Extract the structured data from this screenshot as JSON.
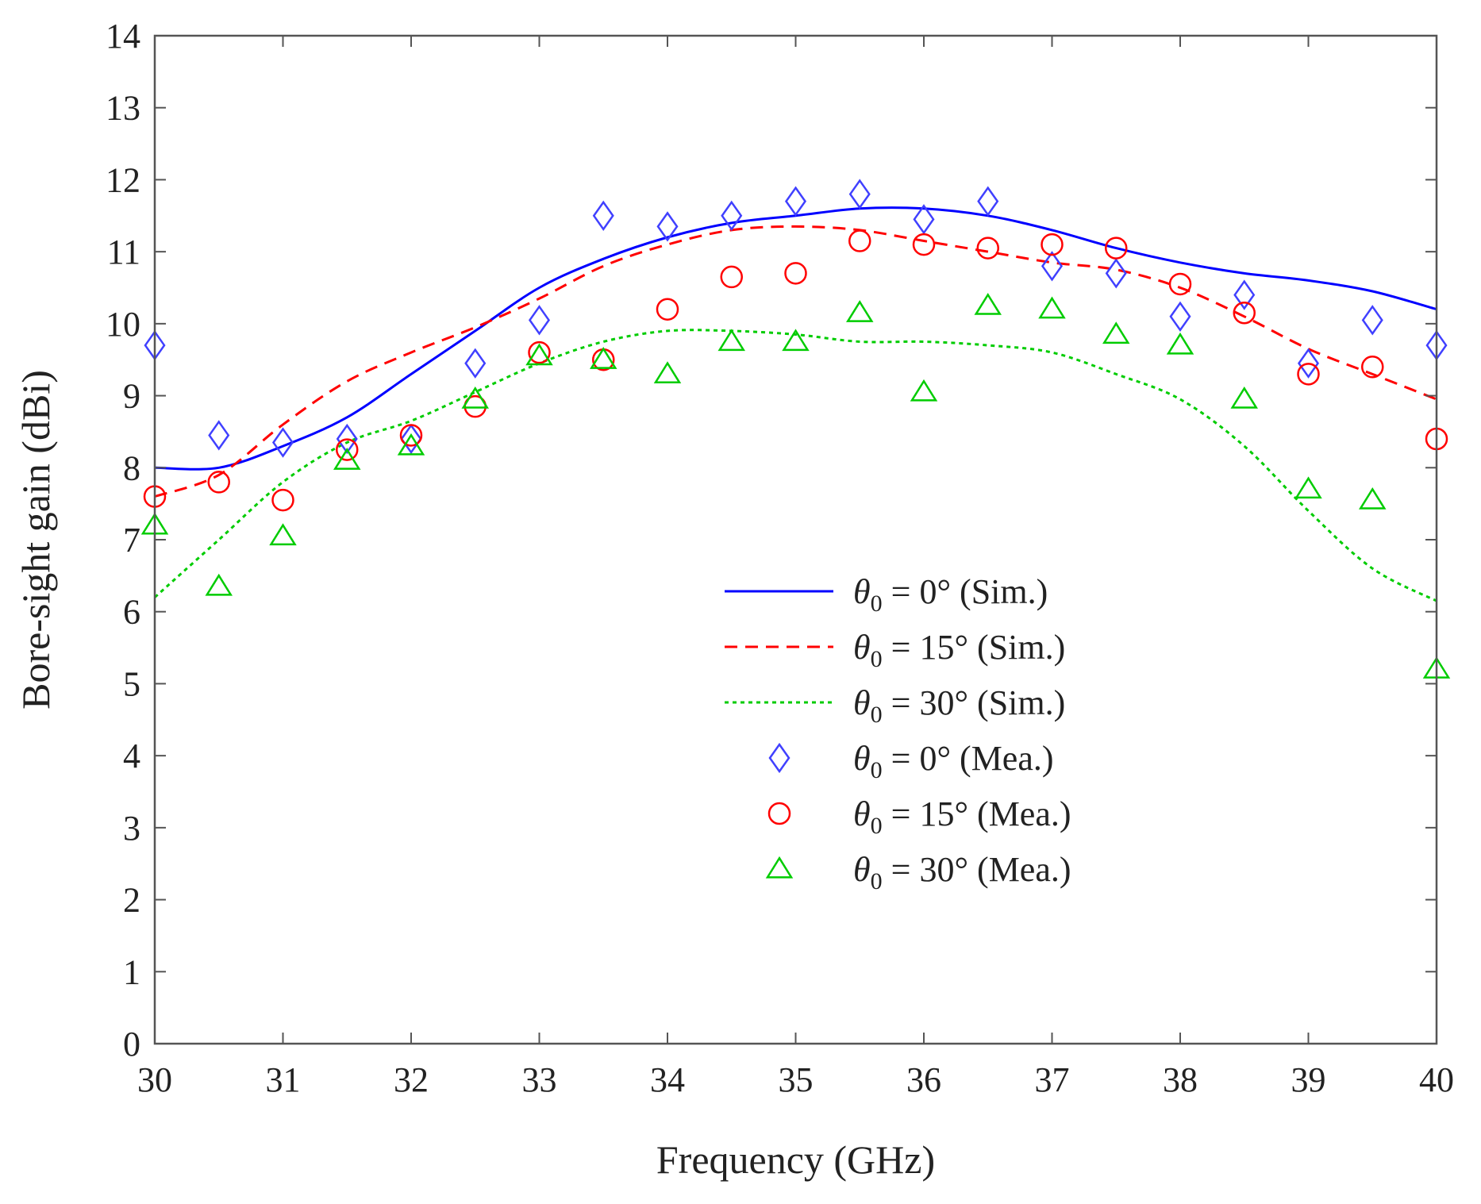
{
  "chart_data": {
    "type": "line",
    "title": "",
    "xlabel": "Frequency (GHz)",
    "ylabel": "Bore-sight gain (dBi)",
    "xlim": [
      30,
      40
    ],
    "ylim": [
      0,
      14
    ],
    "xticks": [
      30,
      31,
      32,
      33,
      34,
      35,
      36,
      37,
      38,
      39,
      40
    ],
    "yticks": [
      0,
      1,
      2,
      3,
      4,
      5,
      6,
      7,
      8,
      9,
      10,
      11,
      12,
      13,
      14
    ],
    "grid": false,
    "legend_position": "lower-right",
    "series": [
      {
        "name": "θ0 = 0° (Sim.)",
        "kind": "line",
        "style": "solid",
        "color": "#0000ff",
        "x": [
          30,
          30.5,
          31,
          31.5,
          32,
          32.5,
          33,
          33.5,
          34,
          34.5,
          35,
          35.5,
          36,
          36.5,
          37,
          37.5,
          38,
          38.5,
          39,
          39.5,
          40
        ],
        "y": [
          8.0,
          8.0,
          8.3,
          8.7,
          9.3,
          9.9,
          10.5,
          10.9,
          11.2,
          11.4,
          11.5,
          11.6,
          11.6,
          11.5,
          11.3,
          11.05,
          10.85,
          10.7,
          10.6,
          10.45,
          10.2
        ]
      },
      {
        "name": "θ0 = 15° (Sim.)",
        "kind": "line",
        "style": "dashed",
        "color": "#ff0000",
        "x": [
          30,
          30.5,
          31,
          31.5,
          32,
          32.5,
          33,
          33.5,
          34,
          34.5,
          35,
          35.5,
          36,
          36.5,
          37,
          37.5,
          38,
          38.5,
          39,
          39.5,
          40
        ],
        "y": [
          7.6,
          7.9,
          8.6,
          9.2,
          9.6,
          9.95,
          10.35,
          10.8,
          11.1,
          11.3,
          11.35,
          11.3,
          11.15,
          11.0,
          10.85,
          10.75,
          10.5,
          10.1,
          9.65,
          9.3,
          8.95
        ]
      },
      {
        "name": "θ0 = 30° (Sim.)",
        "kind": "line",
        "style": "dotted",
        "color": "#00cc00",
        "x": [
          30,
          30.5,
          31,
          31.5,
          32,
          32.5,
          33,
          33.5,
          34,
          34.5,
          35,
          35.5,
          36,
          36.5,
          37,
          37.5,
          38,
          38.5,
          39,
          39.5,
          40
        ],
        "y": [
          6.2,
          7.0,
          7.8,
          8.35,
          8.65,
          9.05,
          9.45,
          9.75,
          9.9,
          9.9,
          9.85,
          9.75,
          9.75,
          9.7,
          9.6,
          9.3,
          8.95,
          8.3,
          7.4,
          6.6,
          6.15
        ]
      },
      {
        "name": "θ0 = 0° (Mea.)",
        "kind": "marker",
        "marker": "diamond",
        "color": "#4040ff",
        "x": [
          30,
          30.5,
          31,
          31.5,
          32,
          32.5,
          33,
          33.5,
          34,
          34.5,
          35,
          35.5,
          36,
          36.5,
          37,
          37.5,
          38,
          38.5,
          39,
          39.5,
          40
        ],
        "y": [
          9.7,
          8.45,
          8.35,
          8.4,
          8.4,
          9.45,
          10.05,
          11.5,
          11.35,
          11.5,
          11.7,
          11.8,
          11.45,
          11.7,
          10.8,
          10.7,
          10.1,
          10.4,
          9.45,
          10.05,
          9.7
        ]
      },
      {
        "name": "θ0 = 15° (Mea.)",
        "kind": "marker",
        "marker": "circle",
        "color": "#ff0000",
        "x": [
          30,
          30.5,
          31,
          31.5,
          32,
          32.5,
          33,
          33.5,
          34,
          34.5,
          35,
          35.5,
          36,
          36.5,
          37,
          37.5,
          38,
          38.5,
          39,
          39.5,
          40
        ],
        "y": [
          7.6,
          7.8,
          7.55,
          8.25,
          8.45,
          8.85,
          9.6,
          9.5,
          10.2,
          10.65,
          10.7,
          11.15,
          11.1,
          11.05,
          11.1,
          11.05,
          10.55,
          10.15,
          9.3,
          9.4,
          8.4
        ]
      },
      {
        "name": "θ0 = 30° (Mea.)",
        "kind": "marker",
        "marker": "triangle",
        "color": "#00cc00",
        "x": [
          30,
          30.5,
          31,
          31.5,
          32,
          32.5,
          33,
          33.5,
          34,
          34.5,
          35,
          35.5,
          36,
          36.5,
          37,
          37.5,
          38,
          38.5,
          39,
          39.5,
          40
        ],
        "y": [
          7.2,
          6.35,
          7.05,
          8.1,
          8.3,
          8.95,
          9.55,
          9.5,
          9.3,
          9.75,
          9.75,
          10.15,
          9.05,
          10.25,
          10.2,
          9.85,
          9.7,
          8.95,
          7.7,
          7.55,
          5.2
        ]
      }
    ],
    "legend": [
      {
        "theta": "θ",
        "sub": "0",
        "rest": " = 0° (Sim.)"
      },
      {
        "theta": "θ",
        "sub": "0",
        "rest": " = 15° (Sim.)"
      },
      {
        "theta": "θ",
        "sub": "0",
        "rest": " = 30° (Sim.)"
      },
      {
        "theta": "θ",
        "sub": "0",
        "rest": " = 0° (Mea.)"
      },
      {
        "theta": "θ",
        "sub": "0",
        "rest": " = 15° (Mea.)"
      },
      {
        "theta": "θ",
        "sub": "0",
        "rest": " = 30° (Mea.)"
      }
    ]
  }
}
